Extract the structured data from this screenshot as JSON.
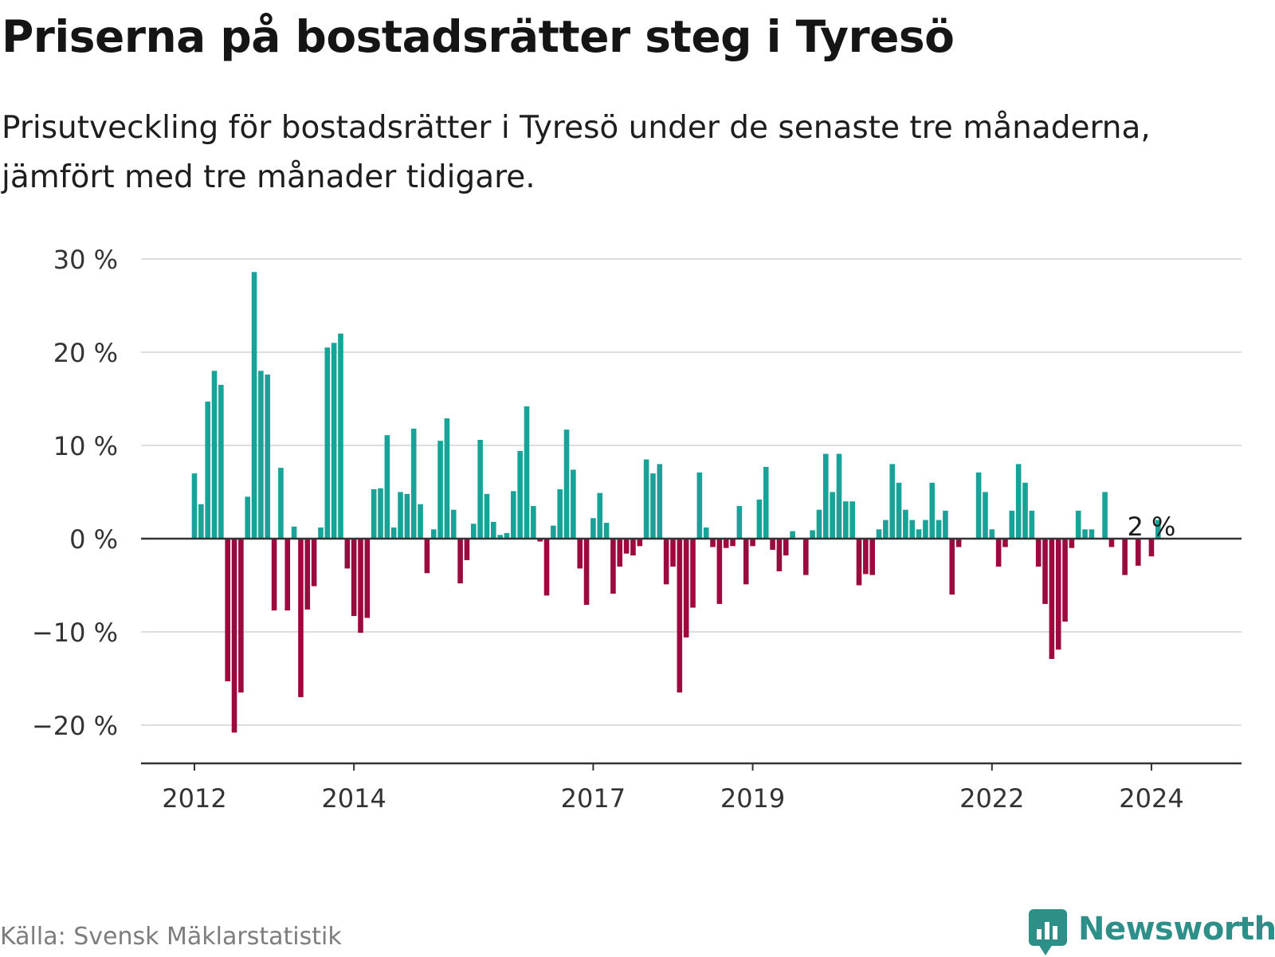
{
  "title": "Priserna på bostadsrätter steg i Tyresö",
  "subtitle": "Prisutveckling för bostadsrätter i Tyresö under de senaste tre månaderna, jämfört med tre månader tidigare.",
  "source": "Källa: Svensk Mäklarstatistik",
  "brand": "Newsworthy",
  "colors": {
    "positive": "#17a398",
    "negative": "#9a0a3e",
    "grid": "#dddddd",
    "axis": "#333333",
    "brand": "#2e8f88"
  },
  "chart_data": {
    "type": "bar",
    "title": "Priserna på bostadsrätter steg i Tyresö",
    "xlabel": "",
    "ylabel": "",
    "ylim": [
      -24,
      30
    ],
    "grid": true,
    "yticks": [
      30,
      20,
      10,
      0,
      -10,
      -20
    ],
    "ytick_labels": [
      "30 %",
      "20 %",
      "10 %",
      "0 %",
      "−10 %",
      "−20 %"
    ],
    "x_ticks": [
      {
        "label": "2012",
        "index": 0
      },
      {
        "label": "2014",
        "index": 24
      },
      {
        "label": "2017",
        "index": 60
      },
      {
        "label": "2019",
        "index": 84
      },
      {
        "label": "2022",
        "index": 120
      },
      {
        "label": "2024",
        "index": 144
      }
    ],
    "annotation": {
      "text": "2 %",
      "index": 144
    },
    "values": [
      7,
      3.7,
      14.7,
      18,
      16.5,
      -15.3,
      -20.8,
      -16.5,
      4.5,
      28.6,
      18,
      17.6,
      -7.7,
      7.6,
      -7.7,
      1.3,
      -17,
      -7.6,
      -5.1,
      1.2,
      20.5,
      21,
      22,
      -3.2,
      -8.3,
      -10.1,
      -8.5,
      5.3,
      5.4,
      11.1,
      1.2,
      5,
      4.8,
      11.8,
      3.7,
      -3.7,
      1,
      10.5,
      12.9,
      3.1,
      -4.8,
      -2.3,
      1.6,
      10.6,
      4.8,
      1.8,
      0.4,
      0.6,
      5.1,
      9.4,
      14.2,
      3.5,
      -0.3,
      -6.1,
      1.4,
      5.3,
      11.7,
      7.4,
      -3.2,
      -7.1,
      2.2,
      4.9,
      1.7,
      -5.9,
      -3,
      -1.6,
      -1.8,
      -0.8,
      8.5,
      7,
      8,
      -4.9,
      -3,
      -16.5,
      -10.6,
      -7.4,
      7.1,
      1.2,
      -0.9,
      -7,
      -1,
      -0.8,
      3.5,
      -4.9,
      -0.8,
      4.2,
      7.7,
      -1.2,
      -3.5,
      -1.8,
      0.8,
      0,
      -3.9,
      0.9,
      3.1,
      9.1,
      5,
      9.1,
      4,
      4,
      -5,
      -3.8,
      -3.9,
      1,
      2,
      8,
      6,
      3.1,
      2,
      1,
      2,
      6,
      2,
      3,
      -6,
      -0.9,
      0,
      0,
      7.1,
      5,
      1,
      -3,
      -0.9,
      3,
      8,
      6,
      3,
      -3,
      -7,
      -12.9,
      -11.9,
      -8.9,
      -1,
      3,
      1,
      1,
      0,
      5,
      -0.9,
      0,
      -3.9,
      0,
      -2.9,
      0,
      -1.9,
      2
    ]
  }
}
